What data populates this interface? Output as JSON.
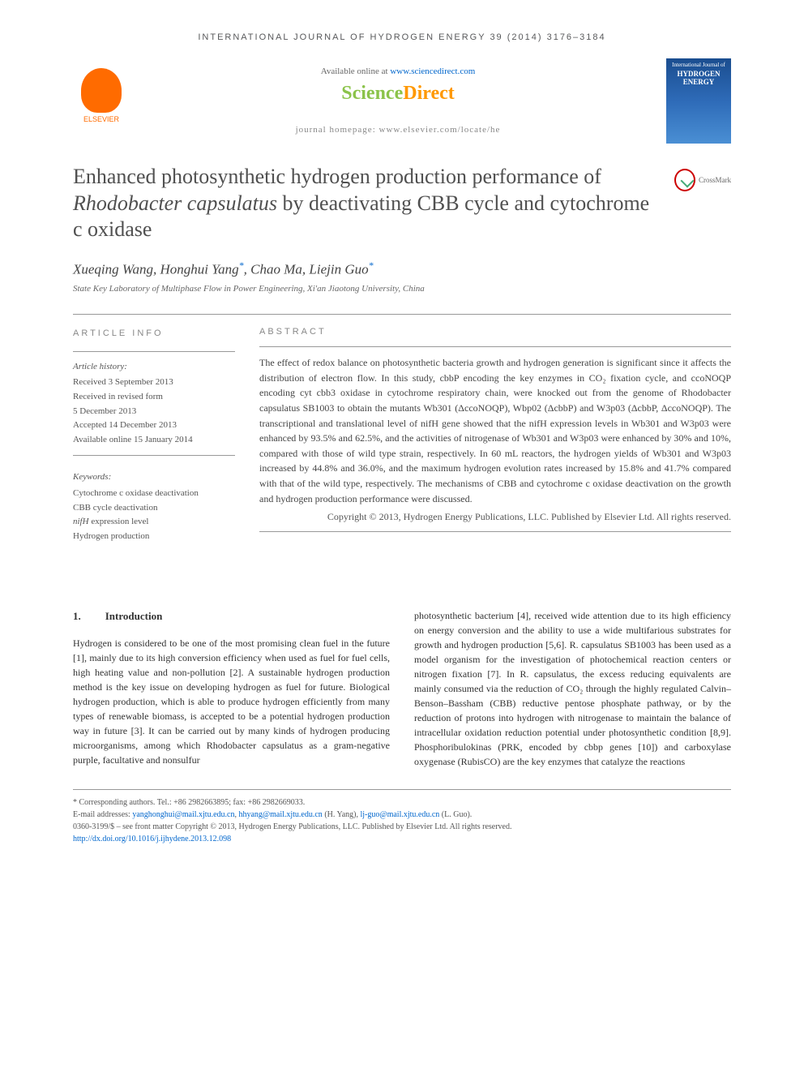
{
  "header": {
    "journal_line": "INTERNATIONAL JOURNAL OF HYDROGEN ENERGY 39 (2014) 3176–3184"
  },
  "top": {
    "elsevier_label": "ELSEVIER",
    "available_prefix": "Available online at ",
    "available_link": "www.sciencedirect.com",
    "sd_science": "Science",
    "sd_direct": "Direct",
    "homepage": "journal homepage: www.elsevier.com/locate/he",
    "cover_top": "International Journal of",
    "cover_title": "HYDROGEN ENERGY"
  },
  "title": {
    "pre": "Enhanced photosynthetic hydrogen production performance of ",
    "species": "Rhodobacter capsulatus",
    "post": " by deactivating CBB cycle and cytochrome c oxidase"
  },
  "crossmark": "CrossMark",
  "authors": {
    "a1": "Xueqing Wang",
    "a2": "Honghui Yang",
    "a3": "Chao Ma",
    "a4": "Liejin Guo",
    "star": "*"
  },
  "affiliation": "State Key Laboratory of Multiphase Flow in Power Engineering, Xi'an Jiaotong University, China",
  "info": {
    "heading": "ARTICLE INFO",
    "history_label": "Article history:",
    "received": "Received 3 September 2013",
    "revised1": "Received in revised form",
    "revised2": "5 December 2013",
    "accepted": "Accepted 14 December 2013",
    "online": "Available online 15 January 2014",
    "keywords_label": "Keywords:",
    "k1": "Cytochrome c oxidase deactivation",
    "k2": "CBB cycle deactivation",
    "k3_pre": "nifH",
    "k3_post": " expression level",
    "k4": "Hydrogen production"
  },
  "abstract": {
    "heading": "ABSTRACT",
    "text": "The effect of redox balance on photosynthetic bacteria growth and hydrogen generation is significant since it affects the distribution of electron flow. In this study, cbbP encoding the key enzymes in CO₂ fixation cycle, and ccoNOQP encoding cyt cbb3 oxidase in cytochrome respiratory chain, were knocked out from the genome of Rhodobacter capsulatus SB1003 to obtain the mutants Wb301 (ΔccoNOQP), Wbp02 (ΔcbbP) and W3p03 (ΔcbbP, ΔccoNOQP). The transcriptional and translational level of nifH gene showed that the nifH expression levels in Wb301 and W3p03 were enhanced by 93.5% and 62.5%, and the activities of nitrogenase of Wb301 and W3p03 were enhanced by 30% and 10%, compared with those of wild type strain, respectively. In 60 mL reactors, the hydrogen yields of Wb301 and W3p03 increased by 44.8% and 36.0%, and the maximum hydrogen evolution rates increased by 15.8% and 41.7% compared with that of the wild type, respectively. The mechanisms of CBB and cytochrome c oxidase deactivation on the growth and hydrogen production performance were discussed.",
    "copyright": "Copyright © 2013, Hydrogen Energy Publications, LLC. Published by Elsevier Ltd. All rights reserved."
  },
  "body": {
    "sec_num": "1.",
    "sec_title": "Introduction",
    "col1": "Hydrogen is considered to be one of the most promising clean fuel in the future [1], mainly due to its high conversion efficiency when used as fuel for fuel cells, high heating value and non-pollution [2]. A sustainable hydrogen production method is the key issue on developing hydrogen as fuel for future. Biological hydrogen production, which is able to produce hydrogen efficiently from many types of renewable biomass, is accepted to be a potential hydrogen production way in future [3]. It can be carried out by many kinds of hydrogen producing microorganisms, among which Rhodobacter capsulatus as a gram-negative purple, facultative and nonsulfur",
    "col2": "photosynthetic bacterium [4], received wide attention due to its high efficiency on energy conversion and the ability to use a wide multifarious substrates for growth and hydrogen production [5,6]. R. capsulatus SB1003 has been used as a model organism for the investigation of photochemical reaction centers or nitrogen fixation [7]. In R. capsulatus, the excess reducing equivalents are mainly consumed via the reduction of CO₂ through the highly regulated Calvin–Benson–Bassham (CBB) reductive pentose phosphate pathway, or by the reduction of protons into hydrogen with nitrogenase to maintain the balance of intracellular oxidation reduction potential under photosynthetic condition [8,9]. Phosphoribulokinas (PRK, encoded by cbbp genes [10]) and carboxylase oxygenase (RubisCO) are the key enzymes that catalyze the reactions"
  },
  "footnotes": {
    "corr": "* Corresponding authors. Tel.: +86 2982663895; fax: +86 2982669033.",
    "email_label": "E-mail addresses: ",
    "e1": "yanghonghui@mail.xjtu.edu.cn",
    "e1_sep": ", ",
    "e2": "hhyang@mail.xjtu.edu.cn",
    "e2_name": " (H. Yang), ",
    "e3": "lj-guo@mail.xjtu.edu.cn",
    "e3_name": " (L. Guo).",
    "issn": "0360-3199/$ – see front matter Copyright © 2013, Hydrogen Energy Publications, LLC. Published by Elsevier Ltd. All rights reserved.",
    "doi": "http://dx.doi.org/10.1016/j.ijhydene.2013.12.098"
  },
  "colors": {
    "link": "#0066cc",
    "orange": "#ff6b00",
    "sd_green": "#8bc34a",
    "sd_orange": "#ff9800"
  }
}
